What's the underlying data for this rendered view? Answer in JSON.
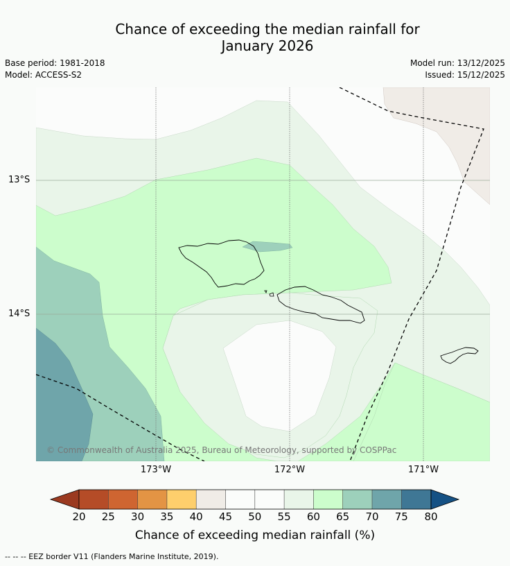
{
  "title": "Chance of exceeding the median rainfall for",
  "subtitle": "January 2026",
  "meta_left": {
    "base_period": "Base period: 1981-2018",
    "model": "Model: ACCESS-S2"
  },
  "meta_right": {
    "model_run": "Model run: 13/12/2025",
    "issued": "Issued: 15/12/2025"
  },
  "map": {
    "latitude_labels": [
      "13°S",
      "14°S"
    ],
    "longitude_labels": [
      "173°W",
      "172°W",
      "171°W"
    ],
    "copyright": "© Commonwealth of Australia 2025, Bureau of Meteorology, supported by COSPPac",
    "islands": [
      "Savai'i",
      "Upolu",
      "Tutuila"
    ]
  },
  "colorbar": {
    "title": "Chance of exceeding median rainfall (%)",
    "ticks": [
      "20",
      "25",
      "30",
      "35",
      "40",
      "45",
      "50",
      "55",
      "60",
      "65",
      "70",
      "75",
      "80"
    ],
    "colors": {
      "below_20": "#9b3a20",
      "20_25": "#b54c27",
      "25_30": "#cf6531",
      "30_35": "#e39444",
      "35_40": "#fecf6c",
      "40_45": "#f0ece7",
      "45_50": "#fbfcfb",
      "50_55": "#fbfcfb",
      "55_60": "#e9f5e9",
      "60_65": "#ccfdcc",
      "65_70": "#9dd0bb",
      "70_75": "#6fa5aa",
      "75_80": "#3f7795",
      "above_80": "#155184"
    }
  },
  "footnote": "--  --  -- EEZ border V11 (Flanders Marine Institute, 2019)."
}
